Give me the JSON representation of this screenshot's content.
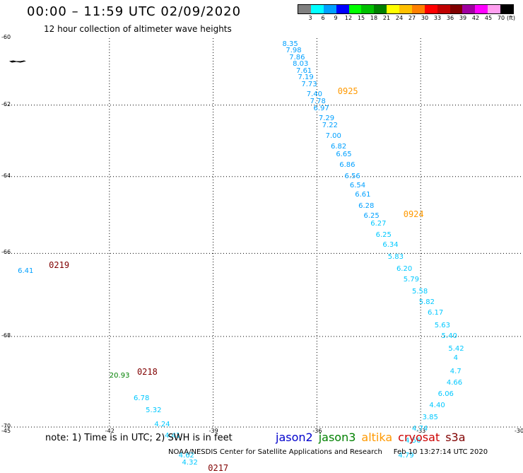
{
  "header": {
    "title": "00:00 – 11:59 UTC 02/09/2020",
    "subtitle": "12 hour collection of altimeter wave heights"
  },
  "legend": {
    "unit_label": "(ft)",
    "bins": [
      {
        "label": "3",
        "color": "#808080"
      },
      {
        "label": "6",
        "color": "#00ffff"
      },
      {
        "label": "9",
        "color": "#00a0ff"
      },
      {
        "label": "12",
        "color": "#0000ff"
      },
      {
        "label": "15",
        "color": "#00ff00"
      },
      {
        "label": "18",
        "color": "#00c000"
      },
      {
        "label": "21",
        "color": "#008000"
      },
      {
        "label": "24",
        "color": "#ffff00"
      },
      {
        "label": "27",
        "color": "#ffc000"
      },
      {
        "label": "30",
        "color": "#ff8000"
      },
      {
        "label": "33",
        "color": "#ff0000"
      },
      {
        "label": "36",
        "color": "#c00000"
      },
      {
        "label": "39",
        "color": "#800000"
      },
      {
        "label": "42",
        "color": "#a000a0"
      },
      {
        "label": "45",
        "color": "#ff00ff"
      },
      {
        "label": "70",
        "color": "#ff9fef"
      },
      {
        "label": "",
        "color": "#000000"
      }
    ]
  },
  "map": {
    "latitudes": [
      {
        "value": -60,
        "label": "-60"
      },
      {
        "value": -62,
        "label": "-62"
      },
      {
        "value": -64,
        "label": "-64"
      },
      {
        "value": -66,
        "label": "-66"
      },
      {
        "value": -68,
        "label": "-68"
      },
      {
        "value": -70,
        "label": "-70"
      }
    ],
    "longitudes": [
      {
        "value": -45,
        "label": "-45"
      },
      {
        "value": -42,
        "label": "-42"
      },
      {
        "value": -39,
        "label": "-39"
      },
      {
        "value": -36,
        "label": "-36"
      },
      {
        "value": -33,
        "label": "-33"
      },
      {
        "value": -30,
        "label": "-30"
      }
    ],
    "gridline_longitudes": [
      -42,
      -39,
      -36,
      -33
    ],
    "gridline_latitudes": [
      -62,
      -64,
      -66,
      -68,
      -70
    ],
    "land_color": "#000000",
    "land_fragment": {
      "lon": -44.9,
      "lat": -60.7
    }
  },
  "tracks": [
    {
      "pass_label": "0925",
      "pass_color": "#ff9900",
      "value_color": "#00a0ff",
      "pass_lon": -35.4,
      "pass_lat": -61.6,
      "points": [
        {
          "lon": -37.0,
          "lat": -60.2,
          "swh": "8.35"
        },
        {
          "lon": -36.9,
          "lat": -60.4,
          "swh": "7.98"
        },
        {
          "lon": -36.8,
          "lat": -60.6,
          "swh": "7.86"
        },
        {
          "lon": -36.7,
          "lat": -60.8,
          "swh": "8.03"
        },
        {
          "lon": -36.6,
          "lat": -61.0,
          "swh": "7.61"
        },
        {
          "lon": -36.55,
          "lat": -61.2,
          "swh": "7.19"
        },
        {
          "lon": -36.45,
          "lat": -61.4,
          "swh": "7.73"
        },
        {
          "lon": -36.3,
          "lat": -61.7,
          "swh": "7.40"
        },
        {
          "lon": -36.2,
          "lat": -61.9,
          "swh": "7.78"
        },
        {
          "lon": -36.1,
          "lat": -62.1,
          "swh": "6.97"
        },
        {
          "lon": -35.95,
          "lat": -62.4,
          "swh": "7.29"
        },
        {
          "lon": -35.85,
          "lat": -62.6,
          "swh": "7.22"
        },
        {
          "lon": -35.75,
          "lat": -62.9,
          "swh": "7.00"
        },
        {
          "lon": -35.6,
          "lat": -63.2,
          "swh": "6.82"
        },
        {
          "lon": -35.45,
          "lat": -63.4,
          "swh": "6.65"
        },
        {
          "lon": -35.35,
          "lat": -63.7,
          "swh": "6.86"
        },
        {
          "lon": -35.2,
          "lat": -64.0,
          "swh": "6.56"
        },
        {
          "lon": -35.05,
          "lat": -64.25,
          "swh": "6.54"
        },
        {
          "lon": -34.9,
          "lat": -64.5,
          "swh": "6.61"
        },
        {
          "lon": -34.8,
          "lat": -64.8,
          "swh": "6.28"
        },
        {
          "lon": -34.65,
          "lat": -65.05,
          "swh": "6.25"
        }
      ]
    },
    {
      "pass_label": "0924",
      "pass_color": "#ff9900",
      "value_color": "#00c8ff",
      "pass_lon": -33.5,
      "pass_lat": -65.0,
      "points": [
        {
          "lon": -34.45,
          "lat": -65.25,
          "swh": "6.27"
        },
        {
          "lon": -34.3,
          "lat": -65.55,
          "swh": "6.25"
        },
        {
          "lon": -34.1,
          "lat": -65.8,
          "swh": "6.34"
        },
        {
          "lon": -33.95,
          "lat": -66.1,
          "swh": "5.83"
        },
        {
          "lon": -33.7,
          "lat": -66.4,
          "swh": "6.20"
        },
        {
          "lon": -33.5,
          "lat": -66.65,
          "swh": "5.79"
        },
        {
          "lon": -33.25,
          "lat": -66.95,
          "swh": "5.58"
        },
        {
          "lon": -33.05,
          "lat": -67.2,
          "swh": "5.82"
        },
        {
          "lon": -32.8,
          "lat": -67.45,
          "swh": "6.17"
        },
        {
          "lon": -32.6,
          "lat": -67.75,
          "swh": "5.63"
        },
        {
          "lon": -32.4,
          "lat": -68.0,
          "swh": "5.40"
        },
        {
          "lon": -32.2,
          "lat": -68.3,
          "swh": "5.42"
        },
        {
          "lon": -32.05,
          "lat": -68.5,
          "swh": "4"
        },
        {
          "lon": -32.15,
          "lat": -68.8,
          "swh": "4.7"
        },
        {
          "lon": -32.25,
          "lat": -69.05,
          "swh": "4.66"
        },
        {
          "lon": -32.5,
          "lat": -69.3,
          "swh": "6.06"
        },
        {
          "lon": -32.75,
          "lat": -69.55,
          "swh": "4.40"
        },
        {
          "lon": -32.95,
          "lat": -69.8,
          "swh": "3.85"
        },
        {
          "lon": -33.25,
          "lat": -70.05,
          "swh": "4.74"
        },
        {
          "lon": -33.45,
          "lat": -70.3,
          "swh": "4.56"
        },
        {
          "lon": -33.65,
          "lat": -70.6,
          "swh": "4.79"
        }
      ]
    },
    {
      "pass_label": "0219",
      "pass_color": "#800000",
      "value_color": "#00a0ff",
      "pass_lon": -43.75,
      "pass_lat": -66.3,
      "points": [
        {
          "lon": -44.65,
          "lat": -66.45,
          "swh": "6.41"
        }
      ]
    },
    {
      "pass_label": "0218",
      "pass_color": "#800000",
      "value_color": "#008000",
      "pass_lon": -41.2,
      "pass_lat": -68.8,
      "points": [
        {
          "lon": -42.0,
          "lat": -68.9,
          "swh": "20.93"
        }
      ]
    },
    {
      "pass_label": "0217",
      "pass_color": "#800000",
      "value_color": "#00c8ff",
      "pass_lon": -39.15,
      "pass_lat": -70.85,
      "points": [
        {
          "lon": -41.3,
          "lat": -69.4,
          "swh": "6.78"
        },
        {
          "lon": -40.95,
          "lat": -69.65,
          "swh": "5.32"
        },
        {
          "lon": -40.7,
          "lat": -69.95,
          "swh": "4.24"
        },
        {
          "lon": -40.4,
          "lat": -70.2,
          "swh": "4.41"
        },
        {
          "lon": -40.0,
          "lat": -70.6,
          "swh": "4.62"
        },
        {
          "lon": -39.9,
          "lat": -70.75,
          "swh": "4.32"
        }
      ]
    }
  ],
  "footer": {
    "note": "note: 1) Time is in UTC; 2) SWH is in feet",
    "satellites": [
      {
        "name": "jason2",
        "color": "#0000cc"
      },
      {
        "name": "jason3",
        "color": "#008000"
      },
      {
        "name": "altika",
        "color": "#ff9900"
      },
      {
        "name": "cryosat",
        "color": "#cc0000"
      },
      {
        "name": "s3a",
        "color": "#800000"
      }
    ],
    "credit": "NOAA/NESDIS Center for Satellite Applications and Research",
    "timestamp": "Feb 10 13:27:14 UTC 2020"
  }
}
